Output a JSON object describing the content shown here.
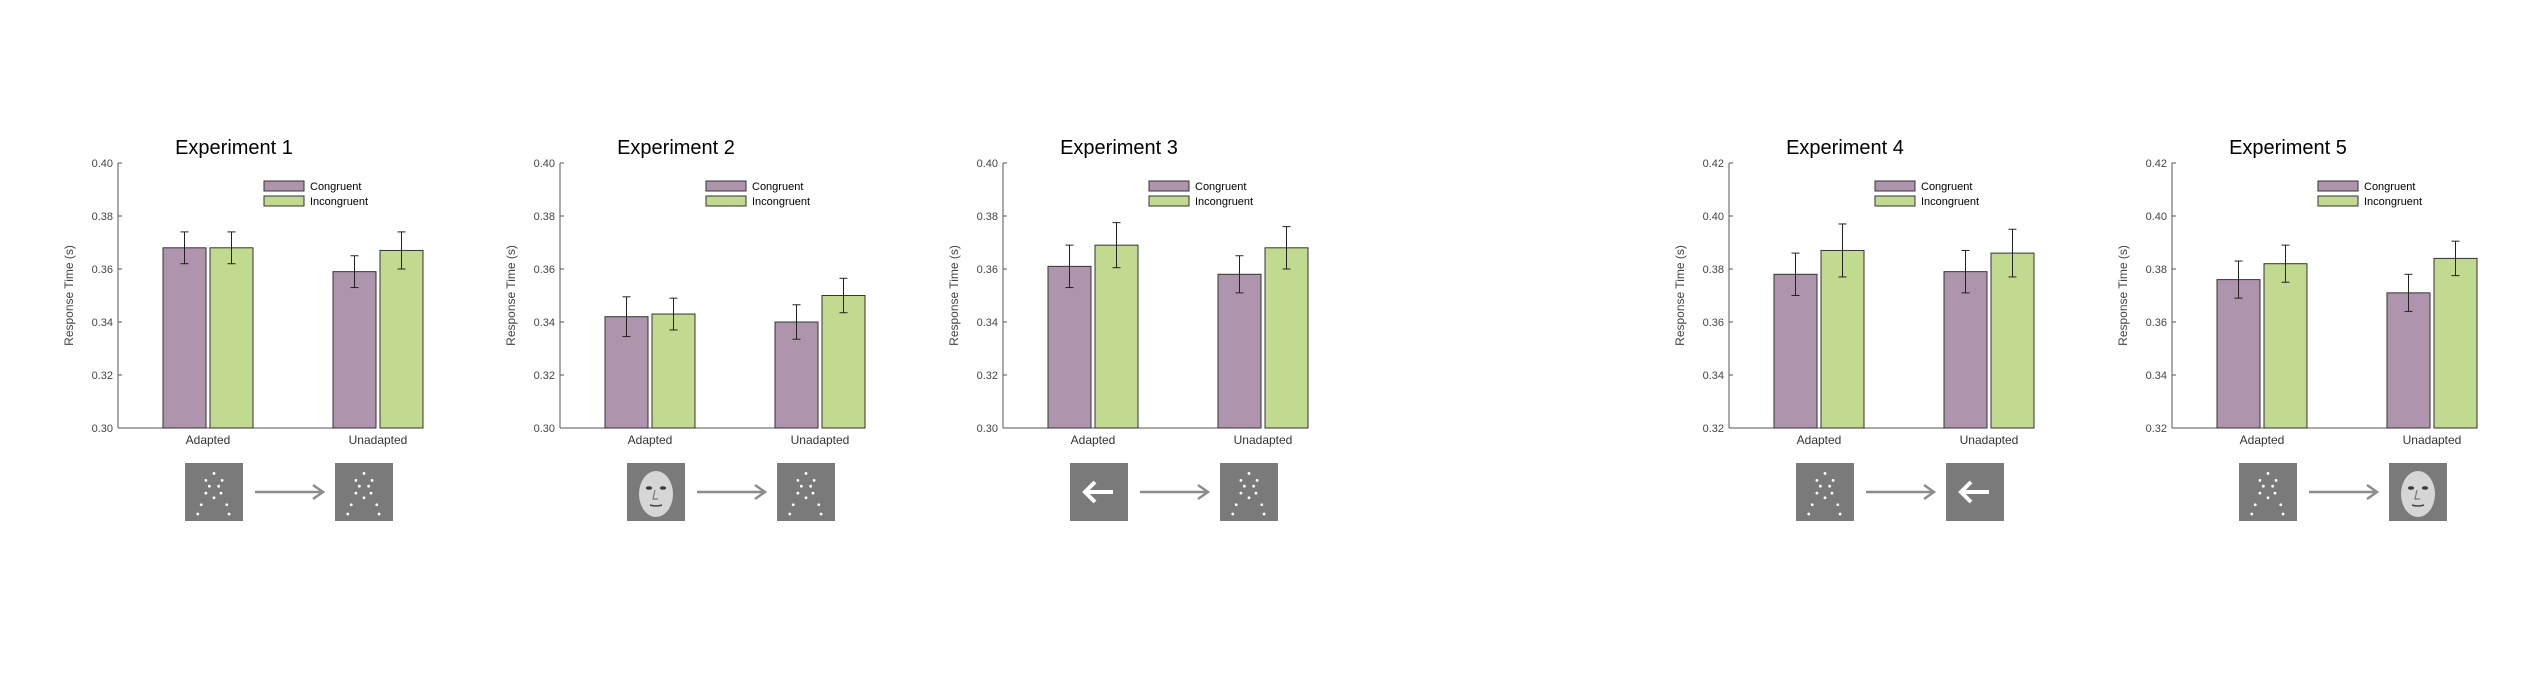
{
  "legend": {
    "congruent_label": "Congruent",
    "incongruent_label": "Incongruent"
  },
  "colors": {
    "congruent": "#ae94ad",
    "incongruent": "#c1da8f",
    "stimulus_bg": "#7a7a7a",
    "arrow": "#8c8c8c",
    "axis": "#555555"
  },
  "chart_data": [
    {
      "type": "bar",
      "title": "Experiment 1",
      "ylabel": "Response Time (s)",
      "xlabel": "",
      "ylim": [
        0.3,
        0.4
      ],
      "yticks": [
        "0.30",
        "0.32",
        "0.34",
        "0.36",
        "0.38",
        "0.40"
      ],
      "categories": [
        "Adapted",
        "Unadapted"
      ],
      "series": [
        {
          "name": "Congruent",
          "values": [
            0.368,
            0.359
          ],
          "err": [
            0.006,
            0.006
          ]
        },
        {
          "name": "Incongruent",
          "values": [
            0.368,
            0.367
          ],
          "err": [
            0.006,
            0.007
          ]
        }
      ],
      "legend_position": "top-right",
      "stimuli": [
        "dots",
        "dots"
      ]
    },
    {
      "type": "bar",
      "title": "Experiment 2",
      "ylabel": "Response Time (s)",
      "xlabel": "",
      "ylim": [
        0.3,
        0.4
      ],
      "yticks": [
        "0.30",
        "0.32",
        "0.34",
        "0.36",
        "0.38",
        "0.40"
      ],
      "categories": [
        "Adapted",
        "Unadapted"
      ],
      "series": [
        {
          "name": "Congruent",
          "values": [
            0.342,
            0.34
          ],
          "err": [
            0.0075,
            0.0065
          ]
        },
        {
          "name": "Incongruent",
          "values": [
            0.343,
            0.35
          ],
          "err": [
            0.006,
            0.0065
          ]
        }
      ],
      "legend_position": "top-right",
      "stimuli": [
        "face",
        "dots"
      ]
    },
    {
      "type": "bar",
      "title": "Experiment 3",
      "ylabel": "Response Time (s)",
      "xlabel": "",
      "ylim": [
        0.3,
        0.4
      ],
      "yticks": [
        "0.30",
        "0.32",
        "0.34",
        "0.36",
        "0.38",
        "0.40"
      ],
      "categories": [
        "Adapted",
        "Unadapted"
      ],
      "series": [
        {
          "name": "Congruent",
          "values": [
            0.361,
            0.358
          ],
          "err": [
            0.008,
            0.007
          ]
        },
        {
          "name": "Incongruent",
          "values": [
            0.369,
            0.368
          ],
          "err": [
            0.0085,
            0.008
          ]
        }
      ],
      "legend_position": "top-right",
      "stimuli": [
        "arrow",
        "dots"
      ]
    },
    {
      "type": "bar",
      "title": "Experiment 4",
      "ylabel": "Response Time (s)",
      "xlabel": "",
      "ylim": [
        0.32,
        0.42
      ],
      "yticks": [
        "0.32",
        "0.34",
        "0.36",
        "0.38",
        "0.40",
        "0.42"
      ],
      "categories": [
        "Adapted",
        "Unadapted"
      ],
      "series": [
        {
          "name": "Congruent",
          "values": [
            0.378,
            0.379
          ],
          "err": [
            0.008,
            0.008
          ]
        },
        {
          "name": "Incongruent",
          "values": [
            0.387,
            0.386
          ],
          "err": [
            0.01,
            0.009
          ]
        }
      ],
      "legend_position": "top-right",
      "stimuli": [
        "dots",
        "arrow"
      ]
    },
    {
      "type": "bar",
      "title": "Experiment 5",
      "ylabel": "Response Time (s)",
      "xlabel": "",
      "ylim": [
        0.32,
        0.42
      ],
      "yticks": [
        "0.32",
        "0.34",
        "0.36",
        "0.38",
        "0.40",
        "0.42"
      ],
      "categories": [
        "Adapted",
        "Unadapted"
      ],
      "series": [
        {
          "name": "Congruent",
          "values": [
            0.376,
            0.371
          ],
          "err": [
            0.007,
            0.007
          ]
        },
        {
          "name": "Incongruent",
          "values": [
            0.382,
            0.384
          ],
          "err": [
            0.007,
            0.0065
          ]
        }
      ],
      "legend_position": "top-right",
      "stimuli": [
        "dots",
        "face"
      ]
    }
  ]
}
